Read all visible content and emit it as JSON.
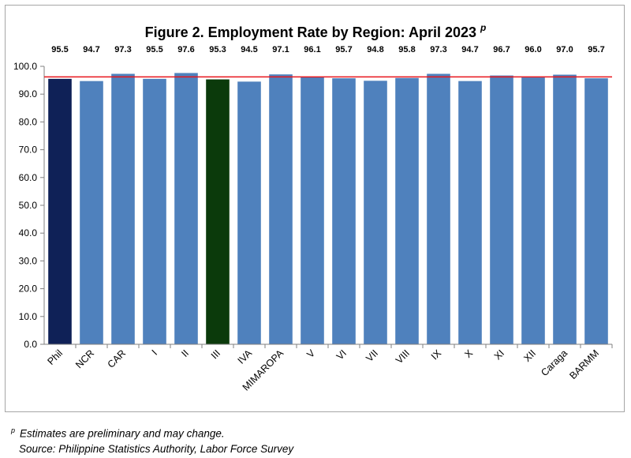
{
  "chart_data": {
    "type": "bar",
    "title": "Figure 2. Employment Rate by Region: April 2023",
    "title_superscript": "p",
    "categories": [
      "Phil",
      "NCR",
      "CAR",
      "I",
      "II",
      "III",
      "IVA",
      "MIMAROPA",
      "V",
      "VI",
      "VII",
      "VIII",
      "IX",
      "X",
      "XI",
      "XII",
      "Caraga",
      "BARMM"
    ],
    "values": [
      95.5,
      94.7,
      97.3,
      95.5,
      97.6,
      95.3,
      94.5,
      97.1,
      96.1,
      95.7,
      94.8,
      95.8,
      97.3,
      94.7,
      96.7,
      96.0,
      97.0,
      95.7
    ],
    "data_labels": [
      "95.5",
      "94.7",
      "97.3",
      "95.5",
      "97.6",
      "95.3",
      "94.5",
      "97.1",
      "96.1",
      "95.7",
      "94.8",
      "95.8",
      "97.3",
      "94.7",
      "96.7",
      "96.0",
      "97.0",
      "95.7"
    ],
    "y_ticks": [
      "0.0",
      "10.0",
      "20.0",
      "30.0",
      "40.0",
      "50.0",
      "60.0",
      "70.0",
      "80.0",
      "90.0",
      "100.0"
    ],
    "ylim": [
      0,
      100
    ],
    "xlabel": "",
    "ylabel": "",
    "reference_line": 96.2,
    "grid": false,
    "legend": "none",
    "colors": {
      "default_bar": "#4f81bd",
      "Phil": "#0f2157",
      "III": "#0b3a0b",
      "reference_line": "#e8141b",
      "axis": "#808080"
    }
  },
  "footnote": {
    "marker": "p",
    "text": "Estimates are preliminary and may change.",
    "source": "Source: Philippine Statistics Authority, Labor Force Survey"
  }
}
